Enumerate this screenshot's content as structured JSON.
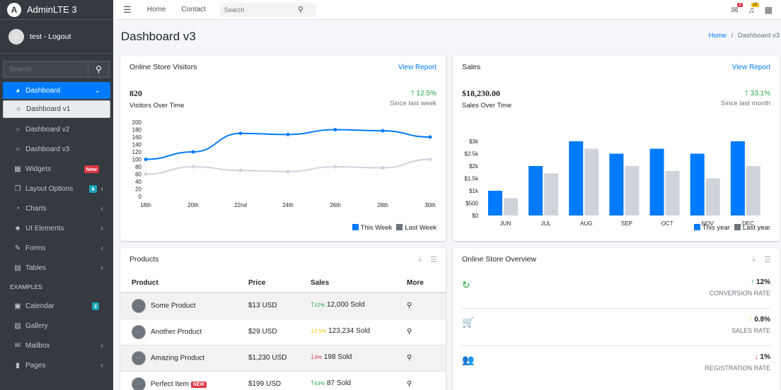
{
  "brand": {
    "name": "AdminLTE 3",
    "logo": "A"
  },
  "user": {
    "label": "test - Logout"
  },
  "sidebar_search": {
    "placeholder": "Search"
  },
  "nav": {
    "dashboard": "Dashboard",
    "dashboard_v1": "Dashboard v1",
    "dashboard_v2": "Dashboard v2",
    "dashboard_v3": "Dashboard v3",
    "widgets": "Widgets",
    "widgets_badge": "New",
    "layout": "Layout Options",
    "layout_badge": "6",
    "charts": "Charts",
    "ui": "UI Elements",
    "forms": "Forms",
    "tables": "Tables",
    "examples_header": "EXAMPLES",
    "calendar": "Calendar",
    "calendar_badge": "2",
    "gallery": "Gallery",
    "mailbox": "Mailbox",
    "pages": "Pages"
  },
  "topbar": {
    "home": "Home",
    "contact": "Contact",
    "search_placeholder": "Search",
    "messages_count": "3",
    "notifications_count": "15"
  },
  "page": {
    "title": "Dashboard v3",
    "crumb_home": "Home",
    "crumb_current": "Dashboard v3"
  },
  "visitors": {
    "title": "Online Store Visitors",
    "link": "View Report",
    "total": "820",
    "subtitle": "Visitors Over Time",
    "change": "12.5%",
    "since": "Since last week",
    "legend_this": "This Week",
    "legend_last": "Last Week"
  },
  "sales": {
    "title": "Sales",
    "link": "View Report",
    "total": "$18,230.00",
    "subtitle": "Sales Over Time",
    "change": "33.1%",
    "since": "Since last month",
    "legend_this": "This year",
    "legend_last": "Last year"
  },
  "products": {
    "title": "Products",
    "headers": [
      "Product",
      "Price",
      "Sales",
      "More"
    ],
    "rows": [
      {
        "name": "Some Product",
        "price": "$13 USD",
        "pct": "12%",
        "dir": "up",
        "sold": "12,000 Sold"
      },
      {
        "name": "Another Product",
        "price": "$29 USD",
        "pct": "0.5%",
        "dir": "warn",
        "sold": "123,234 Sold"
      },
      {
        "name": "Amazing Product",
        "price": "$1,230 USD",
        "pct": "3%",
        "dir": "down",
        "sold": "198 Sold"
      },
      {
        "name": "Perfect Item",
        "price": "$199 USD",
        "pct": "63%",
        "dir": "up",
        "sold": "87 Sold",
        "badge": "NEW"
      }
    ]
  },
  "overview": {
    "title": "Online Store Overview",
    "rows": [
      {
        "value": "12%",
        "label": "CONVERSION RATE",
        "color": "#28a745",
        "arrow": "↑"
      },
      {
        "value": "0.8%",
        "label": "SALES RATE",
        "color": "#ffc107",
        "arrow": "↑"
      },
      {
        "value": "1%",
        "label": "REGISTRATION RATE",
        "color": "#dc3545",
        "arrow": "↓"
      }
    ]
  },
  "colors": {
    "primary": "#007bff",
    "gray": "#ced4da",
    "sidebar": "#343a40"
  },
  "chart_data": [
    {
      "type": "line",
      "x": [
        "18th",
        "20th",
        "22nd",
        "24th",
        "26th",
        "28th",
        "30th"
      ],
      "series": [
        {
          "name": "This Week",
          "values": [
            100,
            120,
            170,
            167,
            180,
            177,
            160
          ]
        },
        {
          "name": "Last Week",
          "values": [
            60,
            80,
            70,
            67,
            80,
            77,
            100
          ]
        }
      ],
      "yticks": [
        0,
        20,
        40,
        60,
        80,
        100,
        120,
        140,
        160,
        180,
        200
      ],
      "ylim": [
        0,
        200
      ]
    },
    {
      "type": "bar",
      "categories": [
        "JUN",
        "JUL",
        "AUG",
        "SEP",
        "OCT",
        "NOV",
        "DEC"
      ],
      "series": [
        {
          "name": "This year",
          "values": [
            1000,
            2000,
            3000,
            2500,
            2700,
            2500,
            3000
          ]
        },
        {
          "name": "Last year",
          "values": [
            700,
            1700,
            2700,
            2000,
            1800,
            1500,
            2000
          ]
        }
      ],
      "yticks": [
        "$0",
        "$500",
        "$1k",
        "$1.5k",
        "$2k",
        "$2.5k",
        "$3k"
      ],
      "ylim": [
        0,
        3000
      ]
    }
  ]
}
